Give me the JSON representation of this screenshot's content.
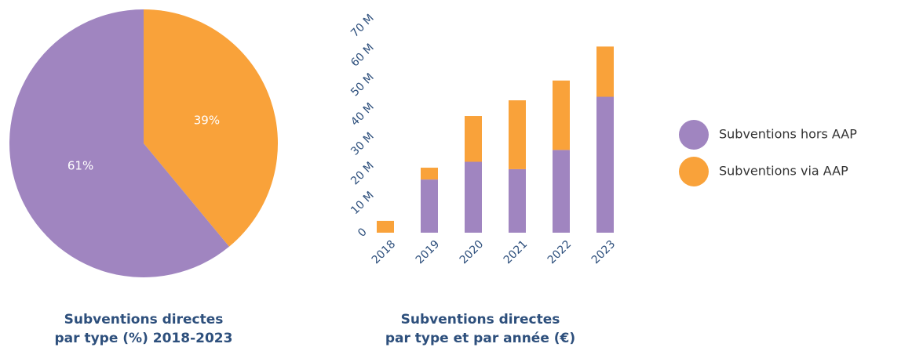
{
  "chart_data": [
    {
      "type": "pie",
      "title": [
        "Subventions directes",
        "par type (%) 2018-2023"
      ],
      "values": [
        39,
        61
      ],
      "value_labels": [
        "39%",
        "61%"
      ],
      "colors": [
        "#f9a23a",
        "#a085c0"
      ]
    },
    {
      "type": "bar",
      "stacked": true,
      "title": [
        "Subventions directes",
        "par type et par année (€)"
      ],
      "categories": [
        "2018",
        "2019",
        "2020",
        "2021",
        "2022",
        "2023"
      ],
      "series": [
        {
          "name": "Subventions hors AAP",
          "color": "#a085c0",
          "values": [
            0,
            18,
            24,
            21.5,
            28,
            46
          ]
        },
        {
          "name": "Subventions via AAP",
          "color": "#f9a23a",
          "values": [
            4,
            4,
            15.5,
            23.3,
            23.5,
            17
          ]
        }
      ],
      "ylim": [
        0,
        70
      ],
      "yticks": [
        0,
        {
          "value": 10,
          "label": "10 M"
        },
        {
          "value": 20,
          "label": "20 M"
        },
        {
          "value": 30,
          "label": "30 M"
        },
        {
          "value": 40,
          "label": "40 M"
        },
        {
          "value": 50,
          "label": "50 M"
        },
        {
          "value": 60,
          "label": "60 M"
        },
        {
          "value": 70,
          "label": "70 M"
        }
      ],
      "grid": false,
      "legend": "right"
    }
  ]
}
